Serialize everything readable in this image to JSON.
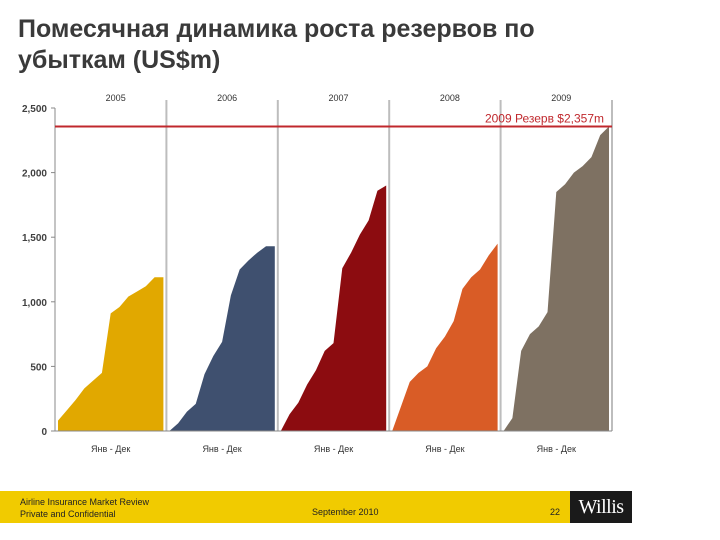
{
  "title_line1": "Помесячная динамика роста резервов по",
  "title_line2": "убыткам (US$m)",
  "chart_data": {
    "type": "area",
    "title": "Помесячная динамика роста резервов по убыткам (US$m)",
    "ylim": [
      0,
      2500
    ],
    "yticks": [
      0,
      500,
      1000,
      1500,
      2000,
      2500
    ],
    "ytick_labels": [
      "0",
      "500",
      "1,000",
      "1,500",
      "2,000",
      "2,500"
    ],
    "panel_xlabel": "Янв - Дек",
    "reference_line": {
      "value": 2357,
      "label": "2009 Резерв $2,357m",
      "color": "#c0282d"
    },
    "series": [
      {
        "name": "2005",
        "color": "#e1a800",
        "x": [
          0,
          1,
          2,
          3,
          4,
          5,
          6,
          7,
          8,
          9,
          10,
          11,
          12
        ],
        "values": [
          80,
          160,
          240,
          330,
          390,
          450,
          910,
          960,
          1040,
          1080,
          1120,
          1190,
          1190
        ]
      },
      {
        "name": "2006",
        "color": "#3f506f",
        "x": [
          0,
          1,
          2,
          3,
          4,
          5,
          6,
          7,
          8,
          9,
          10,
          11,
          12
        ],
        "values": [
          0,
          60,
          150,
          210,
          440,
          580,
          690,
          1050,
          1250,
          1320,
          1380,
          1430,
          1430
        ]
      },
      {
        "name": "2007",
        "color": "#8c0c10",
        "x": [
          0,
          1,
          2,
          3,
          4,
          5,
          6,
          7,
          8,
          9,
          10,
          11,
          12
        ],
        "values": [
          0,
          130,
          220,
          360,
          470,
          620,
          680,
          1260,
          1380,
          1520,
          1630,
          1860,
          1900
        ]
      },
      {
        "name": "2008",
        "color": "#d95c26",
        "x": [
          0,
          1,
          2,
          3,
          4,
          5,
          6,
          7,
          8,
          9,
          10,
          11,
          12
        ],
        "values": [
          0,
          190,
          380,
          450,
          500,
          640,
          730,
          850,
          1100,
          1190,
          1250,
          1360,
          1450
        ]
      },
      {
        "name": "2009",
        "color": "#7e7162",
        "x": [
          0,
          1,
          2,
          3,
          4,
          5,
          6,
          7,
          8,
          9,
          10,
          11,
          12
        ],
        "values": [
          0,
          100,
          620,
          750,
          810,
          920,
          1850,
          1910,
          2000,
          2050,
          2120,
          2290,
          2357
        ]
      }
    ]
  },
  "footer": {
    "line1": "Airline Insurance Market Review",
    "line2": "Private and Confidential",
    "date": "September 2010",
    "page": "22",
    "logo": "Willis"
  }
}
